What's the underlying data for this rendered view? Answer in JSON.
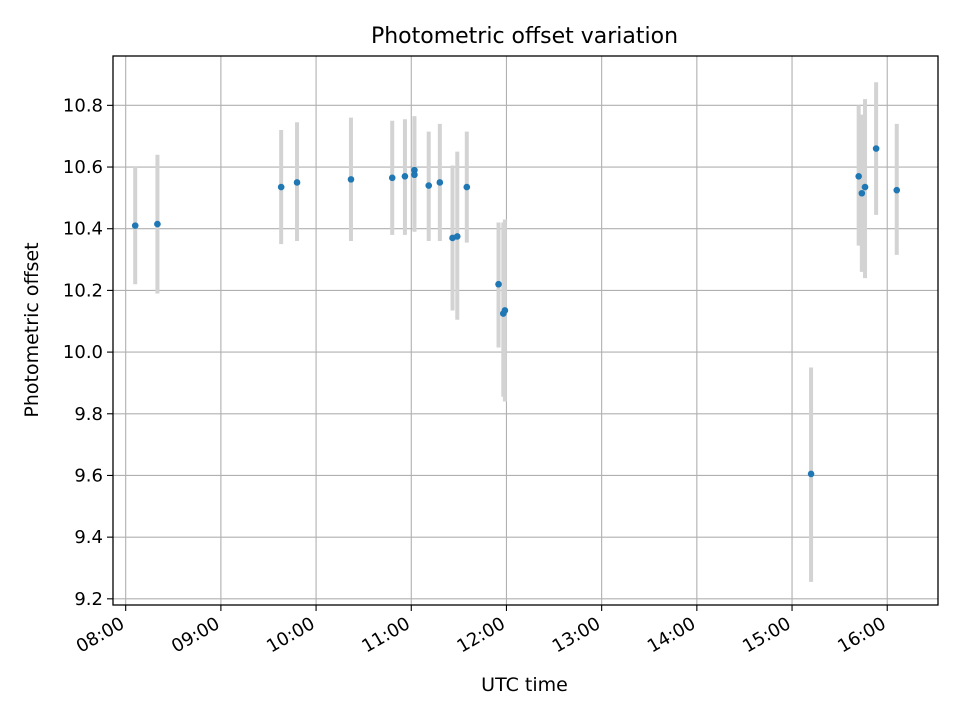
{
  "chart_data": {
    "type": "scatter",
    "title": "Photometric offset variation",
    "xlabel": "UTC time",
    "ylabel": "Photometric offset",
    "x_tick_labels": [
      "08:00",
      "09:00",
      "10:00",
      "11:00",
      "12:00",
      "13:00",
      "14:00",
      "15:00",
      "16:00"
    ],
    "y_tick_labels": [
      "9.2",
      "9.4",
      "9.6",
      "9.8",
      "10.0",
      "10.2",
      "10.4",
      "10.6",
      "10.8"
    ],
    "xlim": [
      "07:52",
      "16:32"
    ],
    "ylim": [
      9.18,
      10.96
    ],
    "grid": true,
    "colors": {
      "point": "#1f77b4",
      "errorbar": "#d3d3d3",
      "grid": "#b0b0b0"
    },
    "points": [
      {
        "time": "08:06",
        "y": 10.41,
        "yerr_low": 10.22,
        "yerr_high": 10.6
      },
      {
        "time": "08:20",
        "y": 10.415,
        "yerr_low": 10.19,
        "yerr_high": 10.64
      },
      {
        "time": "09:38",
        "y": 10.535,
        "yerr_low": 10.35,
        "yerr_high": 10.72
      },
      {
        "time": "09:48",
        "y": 10.55,
        "yerr_low": 10.36,
        "yerr_high": 10.745
      },
      {
        "time": "10:22",
        "y": 10.56,
        "yerr_low": 10.36,
        "yerr_high": 10.76
      },
      {
        "time": "10:48",
        "y": 10.565,
        "yerr_low": 10.38,
        "yerr_high": 10.75
      },
      {
        "time": "10:56",
        "y": 10.57,
        "yerr_low": 10.38,
        "yerr_high": 10.755
      },
      {
        "time": "11:02",
        "y": 10.59,
        "yerr_low": 10.41,
        "yerr_high": 10.765
      },
      {
        "time": "11:02",
        "y": 10.575,
        "yerr_low": 10.39,
        "yerr_high": 10.76
      },
      {
        "time": "11:11",
        "y": 10.54,
        "yerr_low": 10.36,
        "yerr_high": 10.715
      },
      {
        "time": "11:18",
        "y": 10.55,
        "yerr_low": 10.36,
        "yerr_high": 10.74
      },
      {
        "time": "11:26",
        "y": 10.37,
        "yerr_low": 10.135,
        "yerr_high": 10.605
      },
      {
        "time": "11:29",
        "y": 10.375,
        "yerr_low": 10.105,
        "yerr_high": 10.65
      },
      {
        "time": "11:35",
        "y": 10.535,
        "yerr_low": 10.355,
        "yerr_high": 10.715
      },
      {
        "time": "11:55",
        "y": 10.22,
        "yerr_low": 10.015,
        "yerr_high": 10.42
      },
      {
        "time": "11:58",
        "y": 10.125,
        "yerr_low": 9.855,
        "yerr_high": 10.42
      },
      {
        "time": "11:59",
        "y": 10.135,
        "yerr_low": 9.84,
        "yerr_high": 10.43
      },
      {
        "time": "15:12",
        "y": 9.605,
        "yerr_low": 9.255,
        "yerr_high": 9.95
      },
      {
        "time": "15:42",
        "y": 10.57,
        "yerr_low": 10.345,
        "yerr_high": 10.8
      },
      {
        "time": "15:44",
        "y": 10.515,
        "yerr_low": 10.26,
        "yerr_high": 10.77
      },
      {
        "time": "15:46",
        "y": 10.535,
        "yerr_low": 10.24,
        "yerr_high": 10.82
      },
      {
        "time": "15:53",
        "y": 10.66,
        "yerr_low": 10.445,
        "yerr_high": 10.875
      },
      {
        "time": "16:06",
        "y": 10.525,
        "yerr_low": 10.315,
        "yerr_high": 10.74
      }
    ]
  }
}
